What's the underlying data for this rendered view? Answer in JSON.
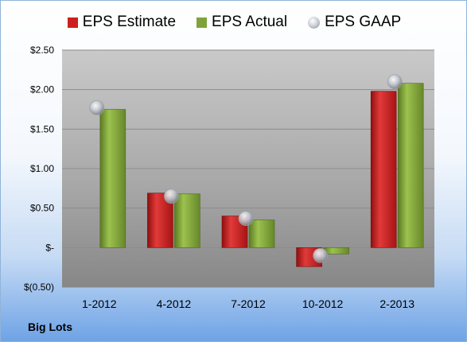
{
  "company": "Big Lots",
  "colors": {
    "estimate": "#cc1f1f",
    "actual": "#7fa33a",
    "gaap": "#b8bcc4"
  },
  "chart_data": {
    "type": "bar",
    "categories": [
      "1-2012",
      "4-2012",
      "7-2012",
      "10-2012",
      "2-2013"
    ],
    "series": [
      {
        "name": "EPS Estimate",
        "values": [
          null,
          0.69,
          0.4,
          -0.24,
          1.98
        ]
      },
      {
        "name": "EPS Actual",
        "values": [
          1.75,
          0.68,
          0.35,
          -0.08,
          2.08
        ]
      },
      {
        "name": "EPS GAAP",
        "values": [
          1.77,
          0.65,
          0.37,
          -0.1,
          2.1
        ]
      }
    ],
    "y_ticks": [
      {
        "value": 2.5,
        "label": "$2.50"
      },
      {
        "value": 2.0,
        "label": "$2.00"
      },
      {
        "value": 1.5,
        "label": "$1.50"
      },
      {
        "value": 1.0,
        "label": "$1.00"
      },
      {
        "value": 0.5,
        "label": "$0.50"
      },
      {
        "value": 0.0,
        "label": "$-"
      },
      {
        "value": -0.5,
        "label": "$(0.50)"
      }
    ],
    "ylim": [
      -0.5,
      2.5
    ],
    "grid": true,
    "legend_position": "top-center",
    "title": "",
    "xlabel": "",
    "ylabel": ""
  }
}
